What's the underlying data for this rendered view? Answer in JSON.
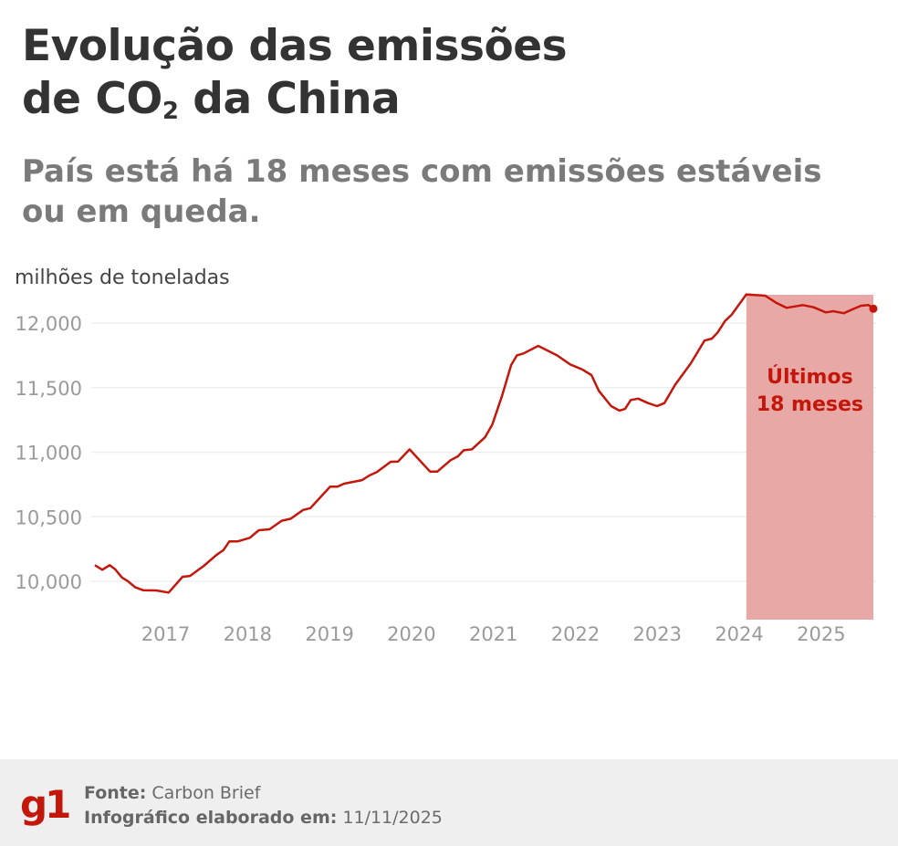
{
  "header": {
    "title_line1": "Evolução das emissões",
    "title_line2_pre": "de CO",
    "title_sub": "2",
    "title_line2_post": " da China",
    "subtitle": "País está há 18 meses com emissões estáveis ou em queda."
  },
  "footer": {
    "logo": "g1",
    "source_label": "Fonte:",
    "source_value": "Carbon Brief",
    "made_label": "Infográfico elaborado em:",
    "made_value": "11/11/2025"
  },
  "chart_data": {
    "type": "line",
    "ylabel": "milhões de toneladas",
    "xlabel": "",
    "xlim": [
      2016.17,
      2025.67
    ],
    "ylim": [
      9800,
      12250
    ],
    "x_ticks": [
      2017,
      2018,
      2019,
      2020,
      2021,
      2022,
      2023,
      2024,
      2025
    ],
    "x_tick_labels": [
      "2017",
      "2018",
      "2019",
      "2020",
      "2021",
      "2022",
      "2023",
      "2024",
      "2025"
    ],
    "y_ticks": [
      10000,
      10500,
      11000,
      11500,
      12000
    ],
    "y_tick_labels": [
      "10,000",
      "10,500",
      "11,000",
      "11,500",
      "12,000"
    ],
    "grid": "horizontal",
    "line_color": "#c4170c",
    "highlight": {
      "from": 2024.12,
      "to": 2025.67,
      "label_line1": "Últimos",
      "label_line2": "18 meses",
      "color": "#e8a9a6"
    },
    "series": [
      {
        "x": [
          2016.17,
          2016.26,
          2016.35,
          2016.42,
          2016.5,
          2016.57,
          2016.66,
          2016.76,
          2016.92,
          2017.07,
          2017.24,
          2017.33,
          2017.5,
          2017.65,
          2017.74,
          2017.81,
          2017.91,
          2018.06,
          2018.17,
          2018.3,
          2018.45,
          2018.56,
          2018.71,
          2018.8,
          2018.91,
          2019.04,
          2019.13,
          2019.21,
          2019.43,
          2019.52,
          2019.61,
          2019.78,
          2019.87,
          2020.01,
          2020.26,
          2020.35,
          2020.51,
          2020.6,
          2020.67,
          2020.77,
          2020.93,
          2021.02,
          2021.14,
          2021.25,
          2021.32,
          2021.4,
          2021.58,
          2021.81,
          2021.97,
          2022.12,
          2022.23,
          2022.32,
          2022.47,
          2022.57,
          2022.64,
          2022.71,
          2022.8,
          2022.92,
          2023.03,
          2023.12,
          2023.25,
          2023.44,
          2023.61,
          2023.7,
          2023.77,
          2023.86,
          2023.94,
          2024.12,
          2024.35,
          2024.48,
          2024.61,
          2024.81,
          2024.94,
          2025.09,
          2025.18,
          2025.31,
          2025.41,
          2025.52,
          2025.61,
          2025.67
        ],
        "y": [
          10125,
          10090,
          10125,
          10092,
          10030,
          10002,
          9955,
          9931,
          9929,
          9913,
          10035,
          10042,
          10120,
          10203,
          10243,
          10309,
          10309,
          10337,
          10396,
          10403,
          10469,
          10485,
          10553,
          10567,
          10643,
          10733,
          10733,
          10756,
          10784,
          10820,
          10846,
          10926,
          10928,
          11022,
          10850,
          10850,
          10938,
          10968,
          11015,
          11022,
          11115,
          11215,
          11440,
          11675,
          11750,
          11765,
          11823,
          11750,
          11680,
          11640,
          11597,
          11475,
          11357,
          11322,
          11335,
          11404,
          11415,
          11380,
          11357,
          11380,
          11521,
          11686,
          11864,
          11880,
          11927,
          12016,
          12064,
          12222,
          12212,
          12158,
          12118,
          12139,
          12122,
          12083,
          12092,
          12076,
          12105,
          12134,
          12139,
          12111
        ]
      }
    ]
  }
}
